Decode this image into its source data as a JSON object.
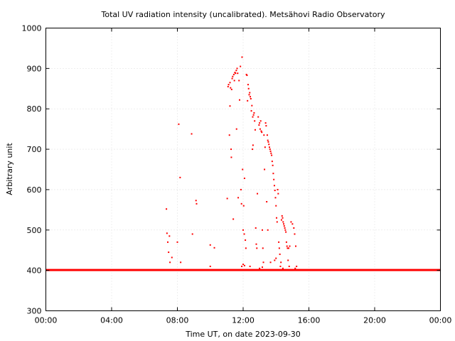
{
  "chart_data": {
    "type": "scatter",
    "title": "Total UV radiation intensity (uncalibrated). Metsähovi Radio Observatory",
    "xlabel": "Time UT, on date 2023-09-30",
    "ylabel": "Arbitrary unit",
    "xlim": [
      "00:00",
      "24:00"
    ],
    "ylim": [
      300,
      1000
    ],
    "x_ticks": [
      "00:00",
      "04:00",
      "08:00",
      "12:00",
      "16:00",
      "20:00",
      "00:00"
    ],
    "y_ticks": [
      300,
      400,
      500,
      600,
      700,
      800,
      900,
      1000
    ],
    "grid": true,
    "marker_color": "#ff0000",
    "baseline": {
      "value": 401,
      "x_start": "00:00",
      "x_end": "24:00"
    },
    "series": [
      {
        "points": [
          [
            "07:20",
            552
          ],
          [
            "07:22",
            492
          ],
          [
            "07:25",
            470
          ],
          [
            "07:28",
            445
          ],
          [
            "07:31",
            485
          ],
          [
            "07:33",
            420
          ],
          [
            "07:40",
            432
          ],
          [
            "08:05",
            762
          ],
          [
            "08:10",
            630
          ],
          [
            "08:00",
            470
          ],
          [
            "08:12",
            420
          ],
          [
            "08:52",
            738
          ],
          [
            "08:55",
            490
          ],
          [
            "09:08",
            573
          ],
          [
            "09:10",
            565
          ],
          [
            "10:00",
            463
          ],
          [
            "10:15",
            456
          ],
          [
            "10:00",
            410
          ],
          [
            "11:02",
            578
          ],
          [
            "11:05",
            855
          ],
          [
            "11:07",
            860
          ],
          [
            "11:10",
            735
          ],
          [
            "11:12",
            865
          ],
          [
            "11:12",
            807
          ],
          [
            "11:14",
            852
          ],
          [
            "11:16",
            700
          ],
          [
            "11:17",
            680
          ],
          [
            "11:18",
            848
          ],
          [
            "11:20",
            875
          ],
          [
            "11:22",
            880
          ],
          [
            "11:24",
            527
          ],
          [
            "11:26",
            885
          ],
          [
            "11:28",
            870
          ],
          [
            "11:30",
            890
          ],
          [
            "11:32",
            888
          ],
          [
            "11:35",
            895
          ],
          [
            "11:36",
            750
          ],
          [
            "11:38",
            900
          ],
          [
            "11:40",
            888
          ],
          [
            "11:42",
            580
          ],
          [
            "11:45",
            870
          ],
          [
            "11:47",
            822
          ],
          [
            "11:50",
            905
          ],
          [
            "11:52",
            600
          ],
          [
            "11:54",
            565
          ],
          [
            "11:56",
            928
          ],
          [
            "11:58",
            650
          ],
          [
            "12:00",
            500
          ],
          [
            "12:02",
            560
          ],
          [
            "12:04",
            490
          ],
          [
            "12:05",
            628
          ],
          [
            "12:08",
            475
          ],
          [
            "12:10",
            455
          ],
          [
            "12:12",
            885
          ],
          [
            "12:14",
            883
          ],
          [
            "12:16",
            820
          ],
          [
            "12:18",
            860
          ],
          [
            "12:20",
            850
          ],
          [
            "12:22",
            835
          ],
          [
            "12:24",
            840
          ],
          [
            "12:26",
            830
          ],
          [
            "12:28",
            825
          ],
          [
            "12:30",
            795
          ],
          [
            "12:32",
            808
          ],
          [
            "12:34",
            700
          ],
          [
            "12:35",
            780
          ],
          [
            "12:36",
            710
          ],
          [
            "12:38",
            785
          ],
          [
            "12:40",
            790
          ],
          [
            "12:42",
            770
          ],
          [
            "12:44",
            748
          ],
          [
            "12:46",
            505
          ],
          [
            "12:48",
            465
          ],
          [
            "12:50",
            455
          ],
          [
            "12:52",
            590
          ],
          [
            "12:55",
            780
          ],
          [
            "12:58",
            760
          ],
          [
            "13:00",
            765
          ],
          [
            "13:02",
            750
          ],
          [
            "13:04",
            770
          ],
          [
            "13:06",
            745
          ],
          [
            "13:08",
            742
          ],
          [
            "13:10",
            500
          ],
          [
            "13:12",
            455
          ],
          [
            "13:14",
            420
          ],
          [
            "13:16",
            735
          ],
          [
            "13:18",
            650
          ],
          [
            "13:20",
            705
          ],
          [
            "13:22",
            765
          ],
          [
            "13:24",
            758
          ],
          [
            "13:26",
            570
          ],
          [
            "13:28",
            735
          ],
          [
            "13:30",
            722
          ],
          [
            "13:32",
            718
          ],
          [
            "13:34",
            712
          ],
          [
            "13:36",
            705
          ],
          [
            "13:38",
            700
          ],
          [
            "13:40",
            695
          ],
          [
            "13:42",
            690
          ],
          [
            "13:44",
            685
          ],
          [
            "13:46",
            670
          ],
          [
            "13:48",
            660
          ],
          [
            "13:50",
            640
          ],
          [
            "13:52",
            625
          ],
          [
            "13:54",
            610
          ],
          [
            "13:56",
            598
          ],
          [
            "13:58",
            580
          ],
          [
            "14:00",
            560
          ],
          [
            "14:02",
            530
          ],
          [
            "14:04",
            520
          ],
          [
            "14:06",
            600
          ],
          [
            "14:08",
            590
          ],
          [
            "14:10",
            470
          ],
          [
            "14:12",
            455
          ],
          [
            "14:14",
            440
          ],
          [
            "14:16",
            410
          ],
          [
            "14:18",
            420
          ],
          [
            "14:20",
            525
          ],
          [
            "14:22",
            535
          ],
          [
            "14:24",
            530
          ],
          [
            "14:26",
            520
          ],
          [
            "14:28",
            515
          ],
          [
            "14:30",
            510
          ],
          [
            "14:32",
            505
          ],
          [
            "14:34",
            500
          ],
          [
            "14:36",
            495
          ],
          [
            "14:38",
            470
          ],
          [
            "14:40",
            460
          ],
          [
            "14:42",
            455
          ],
          [
            "14:44",
            425
          ],
          [
            "14:46",
            455
          ],
          [
            "14:48",
            410
          ],
          [
            "14:50",
            460
          ],
          [
            "14:55",
            520
          ],
          [
            "15:00",
            515
          ],
          [
            "15:05",
            505
          ],
          [
            "15:08",
            490
          ],
          [
            "15:12",
            460
          ],
          [
            "13:30",
            500
          ],
          [
            "13:40",
            420
          ],
          [
            "13:55",
            425
          ],
          [
            "14:00",
            430
          ],
          [
            "12:25",
            410
          ],
          [
            "11:55",
            410
          ],
          [
            "12:00",
            415
          ],
          [
            "12:05",
            412
          ],
          [
            "13:00",
            405
          ],
          [
            "13:10",
            408
          ],
          [
            "14:25",
            405
          ],
          [
            "15:10",
            405
          ],
          [
            "15:15",
            410
          ]
        ]
      }
    ]
  }
}
